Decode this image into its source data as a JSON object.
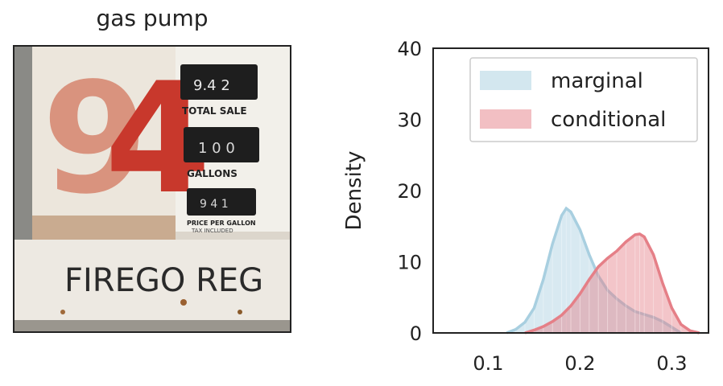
{
  "image_panel": {
    "title": "gas pump",
    "photo_text": {
      "numerals": "94",
      "total_sale_label": "TOTAL SALE",
      "gallons_label": "GALLONS",
      "price_label": "PRICE PER GALLON",
      "price_sublabel": "TAX INCLUDED",
      "sign_text": "FIREGO REG",
      "display_top": "9.4 2",
      "display_mid": "1 0 0",
      "display_bottom": "9 4 1"
    }
  },
  "chart_data": {
    "type": "area",
    "title": "",
    "xlabel": "",
    "ylabel": "Density",
    "xlim": [
      0.04,
      0.34
    ],
    "ylim": [
      0,
      40
    ],
    "x_ticks": [
      0.1,
      0.2,
      0.3
    ],
    "x_tick_labels": [
      "0.1",
      "0.2",
      "0.3"
    ],
    "y_ticks": [
      0,
      10,
      20,
      30,
      40
    ],
    "y_tick_labels": [
      "0",
      "10",
      "20",
      "30",
      "40"
    ],
    "grid": false,
    "legend_position": "top-right",
    "series": [
      {
        "name": "marginal",
        "color": "#a8cfe0",
        "x": [
          0.12,
          0.13,
          0.14,
          0.15,
          0.16,
          0.17,
          0.18,
          0.185,
          0.19,
          0.2,
          0.21,
          0.22,
          0.23,
          0.24,
          0.25,
          0.26,
          0.27,
          0.28,
          0.29,
          0.3,
          0.31
        ],
        "y": [
          0.0,
          0.5,
          1.5,
          3.5,
          7.5,
          12.5,
          16.5,
          17.5,
          17.0,
          14.5,
          11.0,
          8.0,
          6.0,
          4.8,
          3.8,
          3.0,
          2.6,
          2.2,
          1.6,
          0.8,
          0.0
        ]
      },
      {
        "name": "conditional",
        "color": "#e57f87",
        "x": [
          0.14,
          0.15,
          0.16,
          0.17,
          0.18,
          0.19,
          0.2,
          0.21,
          0.22,
          0.23,
          0.24,
          0.25,
          0.26,
          0.265,
          0.27,
          0.28,
          0.29,
          0.3,
          0.31,
          0.32,
          0.33
        ],
        "y": [
          0.0,
          0.4,
          0.9,
          1.6,
          2.5,
          3.8,
          5.5,
          7.5,
          9.3,
          10.5,
          11.5,
          12.8,
          13.8,
          13.9,
          13.5,
          11.0,
          7.0,
          3.5,
          1.2,
          0.3,
          0.0
        ]
      }
    ]
  }
}
